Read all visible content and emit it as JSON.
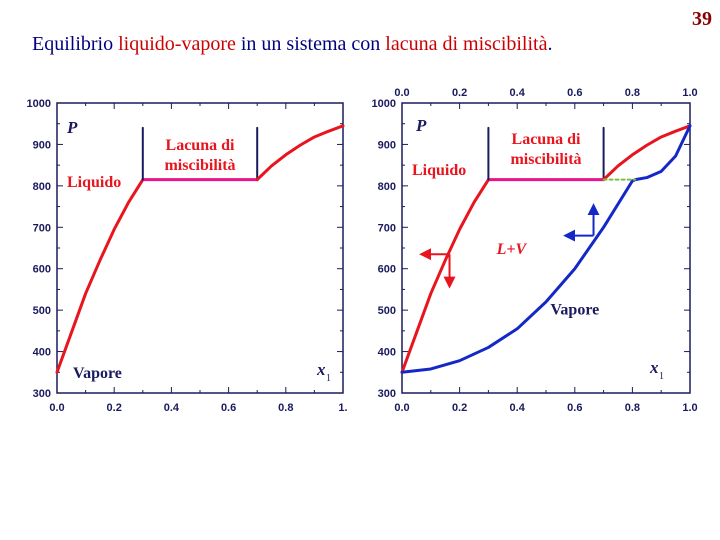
{
  "slide": {
    "number": "39",
    "title_parts": [
      {
        "text": "Equilibrio ",
        "color": "#000080"
      },
      {
        "text": "liquido-vapore",
        "color": "#cc0000"
      },
      {
        "text": " in un sistema con ",
        "color": "#000080"
      },
      {
        "text": "lacuna di miscibilità",
        "color": "#cc0000"
      },
      {
        "text": ".",
        "color": "#000080"
      }
    ]
  },
  "colors": {
    "liquid": "#e8141e",
    "vapor": "#1428c8",
    "tie_line": "#7fbf3f",
    "frame": "#1a1a5e",
    "tick_text": "#1a1a5e"
  },
  "chart_data": [
    {
      "type": "line",
      "title": "",
      "xlabel": "x1",
      "ylabel": "P",
      "xlim": [
        0,
        1
      ],
      "ylim": [
        300,
        1000
      ],
      "x_tick_labels": [
        "0.0",
        "0.2",
        "0.4",
        "0.6",
        "0.8",
        "1."
      ],
      "y_tick_labels": [
        "1000",
        "900",
        "800",
        "700",
        "600",
        "500",
        "400",
        "300"
      ],
      "region_labels": [
        "P",
        "Lacuna di\nmiscibilità",
        "Liquido",
        "Vapore",
        "x1"
      ],
      "series": [
        {
          "role": "liquid",
          "x": [
            0.0,
            0.05,
            0.1,
            0.15,
            0.2,
            0.25,
            0.3
          ],
          "y": [
            350,
            445,
            540,
            620,
            695,
            760,
            815
          ]
        },
        {
          "role": "miscibility-gap",
          "x": [
            0.3,
            0.7
          ],
          "y": [
            815,
            815
          ]
        },
        {
          "role": "gap-left-wall",
          "x": [
            0.3,
            0.3
          ],
          "y": [
            815,
            940
          ]
        },
        {
          "role": "gap-right-wall",
          "x": [
            0.7,
            0.7
          ],
          "y": [
            815,
            940
          ]
        },
        {
          "role": "liquid",
          "x": [
            0.7,
            0.75,
            0.8,
            0.85,
            0.9,
            0.95,
            1.0
          ],
          "y": [
            815,
            848,
            875,
            898,
            918,
            932,
            945
          ]
        }
      ]
    },
    {
      "type": "line",
      "title": "",
      "xlabel": "x1",
      "ylabel": "P",
      "xlim": [
        0,
        1
      ],
      "ylim": [
        300,
        1000
      ],
      "x_tick_labels": [
        "0.0",
        "0.2",
        "0.4",
        "0.6",
        "0.8",
        "1.0"
      ],
      "y_tick_labels": [
        "1000",
        "900",
        "800",
        "700",
        "600",
        "500",
        "400",
        "300"
      ],
      "region_labels": [
        "P",
        "Lacuna di\nmiscibilità",
        "Liquido",
        "L+V",
        "Vapore",
        "x1"
      ],
      "series": [
        {
          "role": "liquid",
          "x": [
            0.0,
            0.05,
            0.1,
            0.15,
            0.2,
            0.25,
            0.3
          ],
          "y": [
            350,
            445,
            540,
            620,
            695,
            760,
            815
          ]
        },
        {
          "role": "miscibility-gap",
          "x": [
            0.3,
            0.7
          ],
          "y": [
            815,
            815
          ]
        },
        {
          "role": "gap-left-wall",
          "x": [
            0.3,
            0.3
          ],
          "y": [
            815,
            940
          ]
        },
        {
          "role": "gap-right-wall",
          "x": [
            0.7,
            0.7
          ],
          "y": [
            815,
            940
          ]
        },
        {
          "role": "liquid",
          "x": [
            0.7,
            0.75,
            0.8,
            0.85,
            0.9,
            0.95,
            1.0
          ],
          "y": [
            815,
            848,
            875,
            898,
            918,
            932,
            945
          ]
        },
        {
          "role": "vapor",
          "x": [
            0.0,
            0.1,
            0.2,
            0.3,
            0.4,
            0.5,
            0.6,
            0.7,
            0.8,
            0.81,
            0.85,
            0.9,
            0.95,
            1.0
          ],
          "y": [
            350,
            358,
            378,
            410,
            455,
            520,
            600,
            700,
            812,
            815,
            820,
            835,
            872,
            945
          ]
        },
        {
          "role": "tie-line",
          "x": [
            0.7,
            0.81
          ],
          "y": [
            815,
            815
          ]
        }
      ]
    }
  ]
}
